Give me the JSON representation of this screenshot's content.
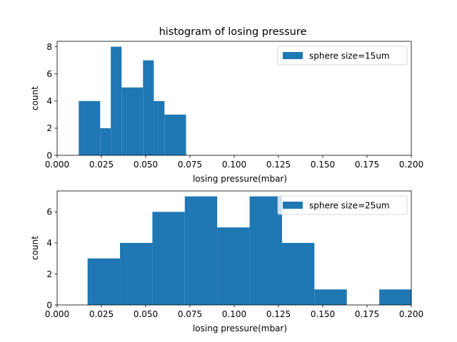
{
  "chart_data": [
    {
      "type": "histogram",
      "title": "histogram of losing pressure",
      "xlabel": "losing pressure(mbar)",
      "ylabel": "count",
      "xlim": [
        0.0,
        0.2
      ],
      "ylim": [
        0,
        8.4
      ],
      "xticks": [
        "0.000",
        "0.025",
        "0.050",
        "0.075",
        "0.100",
        "0.125",
        "0.150",
        "0.175",
        "0.200"
      ],
      "yticks": [
        "0",
        "2",
        "4",
        "6",
        "8"
      ],
      "legend_position": "top-right",
      "color": "#1f77b4",
      "series": [
        {
          "name": "sphere size=15um",
          "bins": [
            {
              "x0": 0.0122,
              "x1": 0.0243,
              "count": 4
            },
            {
              "x0": 0.0243,
              "x1": 0.0303,
              "count": 2
            },
            {
              "x0": 0.0303,
              "x1": 0.0364,
              "count": 8
            },
            {
              "x0": 0.0364,
              "x1": 0.0485,
              "count": 5
            },
            {
              "x0": 0.0485,
              "x1": 0.0546,
              "count": 7
            },
            {
              "x0": 0.0546,
              "x1": 0.0606,
              "count": 4
            },
            {
              "x0": 0.0606,
              "x1": 0.0728,
              "count": 3
            }
          ]
        }
      ]
    },
    {
      "type": "histogram",
      "title": "",
      "xlabel": "losing pressure(mbar)",
      "ylabel": "count",
      "xlim": [
        0.0,
        0.2
      ],
      "ylim": [
        0,
        7.35
      ],
      "xticks": [
        "0.000",
        "0.025",
        "0.050",
        "0.075",
        "0.100",
        "0.125",
        "0.150",
        "0.175",
        "0.200"
      ],
      "yticks": [
        "0",
        "2",
        "4",
        "6"
      ],
      "legend_position": "top-right",
      "color": "#1f77b4",
      "series": [
        {
          "name": "sphere size=25um",
          "bins": [
            {
              "x0": 0.0172,
              "x1": 0.0355,
              "count": 3
            },
            {
              "x0": 0.0355,
              "x1": 0.0538,
              "count": 4
            },
            {
              "x0": 0.0538,
              "x1": 0.0721,
              "count": 6
            },
            {
              "x0": 0.0721,
              "x1": 0.0904,
              "count": 7
            },
            {
              "x0": 0.0904,
              "x1": 0.1087,
              "count": 5
            },
            {
              "x0": 0.1087,
              "x1": 0.127,
              "count": 7
            },
            {
              "x0": 0.127,
              "x1": 0.1453,
              "count": 4
            },
            {
              "x0": 0.1453,
              "x1": 0.1636,
              "count": 1
            },
            {
              "x0": 0.1636,
              "x1": 0.1819,
              "count": 0
            },
            {
              "x0": 0.1819,
              "x1": 0.2002,
              "count": 1
            }
          ]
        }
      ]
    }
  ]
}
